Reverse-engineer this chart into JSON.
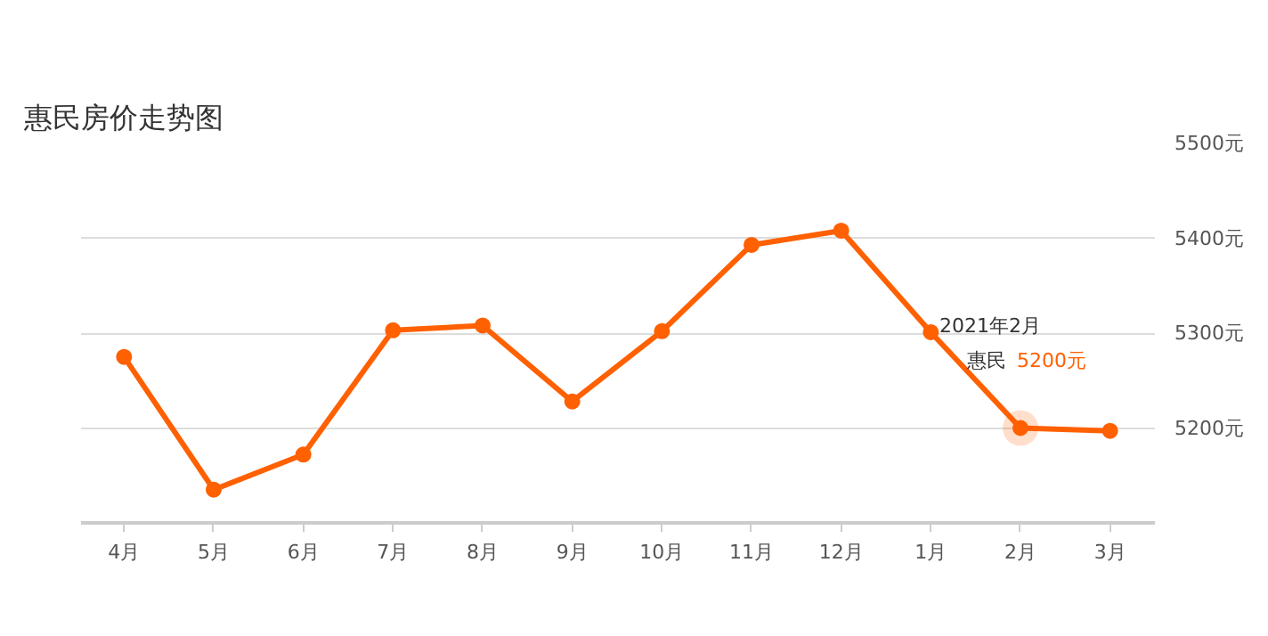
{
  "chart_data": {
    "type": "line",
    "title": "惠民房价走势图",
    "categories": [
      "4月",
      "5月",
      "6月",
      "7月",
      "8月",
      "9月",
      "10月",
      "11月",
      "12月",
      "1月",
      "2月",
      "3月"
    ],
    "series": [
      {
        "name": "惠民",
        "color": "#ff6000",
        "values": [
          5275,
          5135,
          5172,
          5303,
          5308,
          5228,
          5302,
          5393,
          5408,
          5301,
          5200,
          5197
        ],
        "value_labels": [
          null,
          null,
          null,
          null,
          null,
          null,
          null,
          null,
          null,
          null,
          "5200元",
          null
        ]
      }
    ],
    "annotations": [
      "2021年2月"
    ],
    "ylim": [
      5100,
      5500
    ],
    "yticks": [
      {
        "value": 5200,
        "label": "5200元"
      },
      {
        "value": 5300,
        "label": "5300元"
      },
      {
        "value": 5400,
        "label": "5400元"
      },
      {
        "value": 5500,
        "label": "5500元"
      }
    ],
    "grid": "y",
    "marker": "circle",
    "line_style": "solid"
  }
}
